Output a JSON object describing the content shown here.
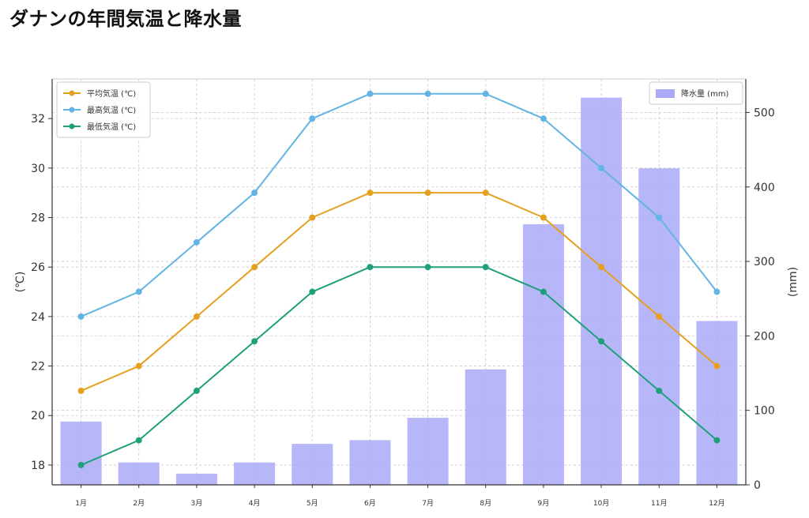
{
  "title": "ダナンの年間気温と降水量",
  "chart_data": {
    "type": "line",
    "title": "ダナンの年間気温と降水量",
    "categories": [
      "1月",
      "2月",
      "3月",
      "4月",
      "5月",
      "6月",
      "7月",
      "8月",
      "9月",
      "10月",
      "11月",
      "12月"
    ],
    "series": [
      {
        "name": "平均気温 (℃)",
        "type": "line",
        "axis": "left",
        "color": "#e6a020",
        "values": [
          21,
          22,
          24,
          26,
          28,
          29,
          29,
          29,
          28,
          26,
          24,
          22
        ]
      },
      {
        "name": "最高気温 (℃)",
        "type": "line",
        "axis": "left",
        "color": "#62b4e3",
        "values": [
          24,
          25,
          27,
          29,
          32,
          33,
          33,
          33,
          32,
          30,
          28,
          25
        ]
      },
      {
        "name": "最低気温 (℃)",
        "type": "line",
        "axis": "left",
        "color": "#20a07a",
        "values": [
          18,
          19,
          21,
          23,
          25,
          26,
          26,
          26,
          25,
          23,
          21,
          19
        ]
      },
      {
        "name": "降水量 (mm)",
        "type": "bar",
        "axis": "right",
        "color": "#a9a9f7",
        "values": [
          85,
          30,
          15,
          30,
          55,
          60,
          90,
          155,
          350,
          520,
          425,
          220
        ]
      }
    ],
    "ylabel": "(℃)",
    "y2label": "(mm)",
    "ylim": [
      17.2,
      33.6
    ],
    "y2lim": [
      0,
      545
    ],
    "yticks": [
      18,
      20,
      22,
      24,
      26,
      28,
      30,
      32
    ],
    "y2ticks": [
      0,
      100,
      200,
      300,
      400,
      500
    ],
    "grid": true,
    "legend_left": "top-left",
    "legend_right": "top-right"
  }
}
